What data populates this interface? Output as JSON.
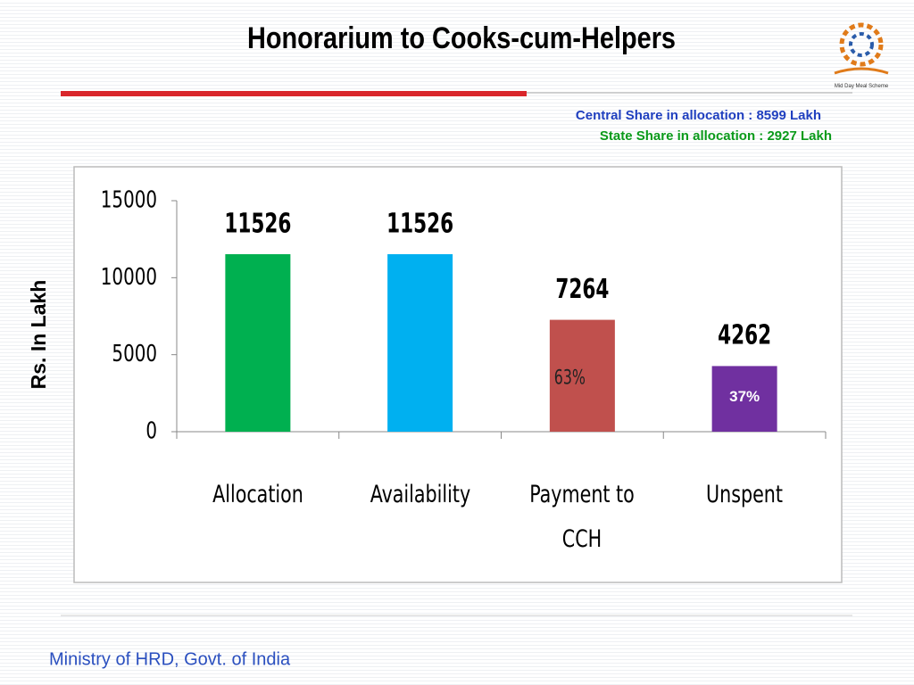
{
  "chart_data": {
    "type": "bar",
    "title": "Honorarium to Cooks-cum-Helpers",
    "annotations": [
      "Central Share in allocation : 8599 Lakh",
      "State Share in allocation :  2927  Lakh"
    ],
    "y_label": "Rs. In Lakh",
    "categories": [
      "Allocation",
      "Availability",
      "Payment to CCH",
      "Unspent"
    ],
    "values": [
      11526,
      11526,
      7264,
      4262
    ],
    "colors": [
      "#00b050",
      "#00b0f0",
      "#c0504d",
      "#7030a0"
    ],
    "share_labels": [
      null,
      null,
      "63%",
      "37%"
    ],
    "ylim": [
      0,
      15000
    ],
    "yticks": [
      0,
      5000,
      10000,
      15000
    ],
    "grid": false
  },
  "logo_text": "Mid Day Meal Scheme",
  "footer": "Ministry of HRD, Govt. of India"
}
